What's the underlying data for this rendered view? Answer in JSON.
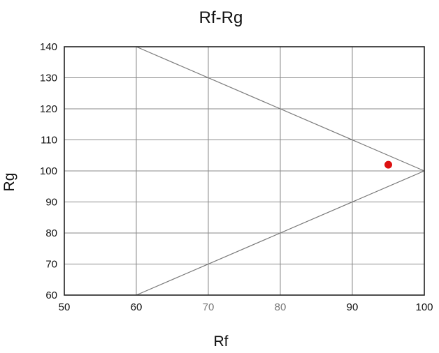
{
  "chart_data": {
    "type": "scatter",
    "title": "Rf-Rg",
    "xlabel": "Rf",
    "ylabel": "Rg",
    "xlim": [
      50,
      100
    ],
    "ylim": [
      60,
      140
    ],
    "xticks": [
      50,
      60,
      70,
      80,
      90,
      100
    ],
    "yticks": [
      60,
      70,
      80,
      90,
      100,
      110,
      120,
      130,
      140
    ],
    "xtick_labels": [
      "50",
      "60",
      "70",
      "80",
      "90",
      "100"
    ],
    "ytick_labels": [
      "60",
      "70",
      "80",
      "90",
      "100",
      "110",
      "120",
      "130",
      "140"
    ],
    "grid": true,
    "reference_lines": [
      {
        "x": [
          60,
          100
        ],
        "y": [
          140,
          100
        ]
      },
      {
        "x": [
          60,
          100
        ],
        "y": [
          60,
          100
        ]
      }
    ],
    "series": [
      {
        "x": [
          95
        ],
        "y": [
          102
        ],
        "color": "#dd1111"
      }
    ]
  }
}
